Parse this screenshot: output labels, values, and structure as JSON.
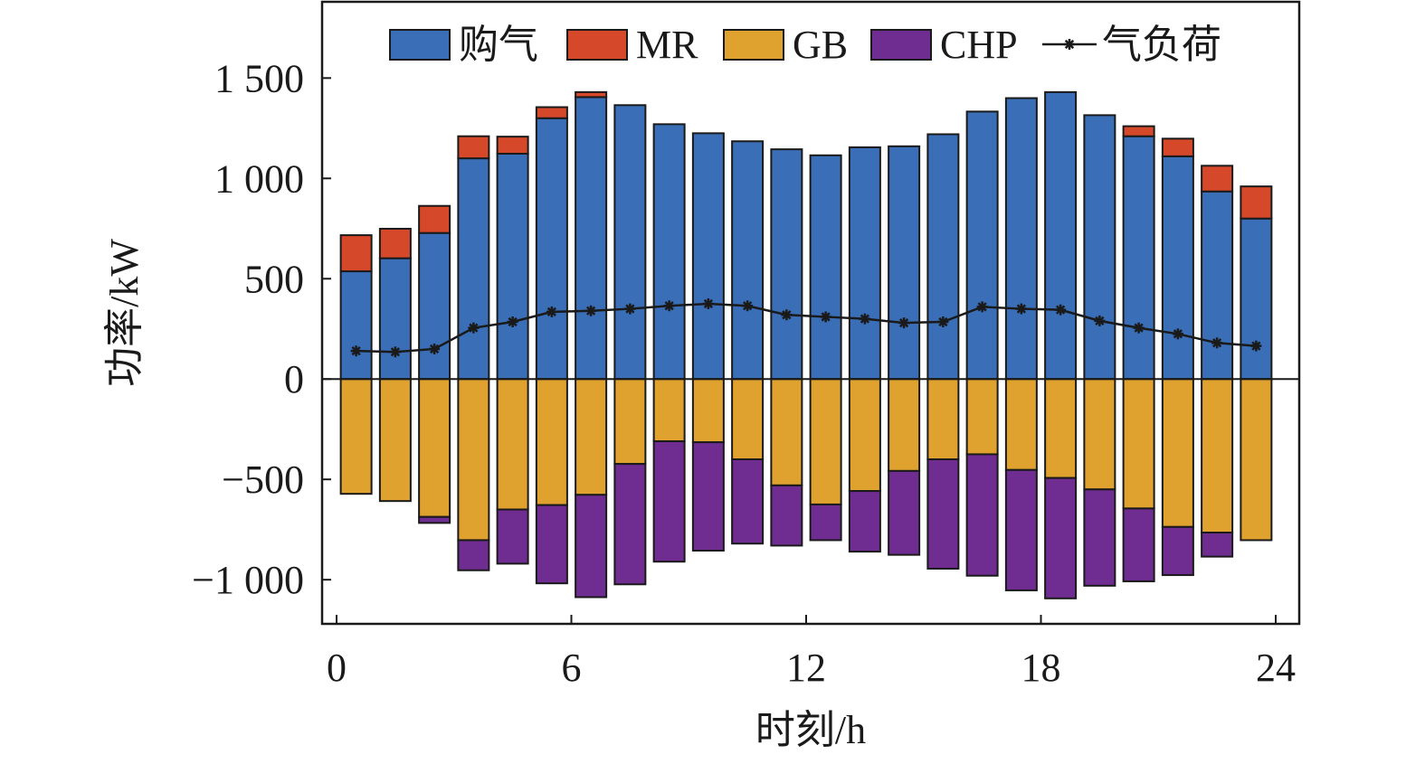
{
  "chart_data": {
    "type": "bar",
    "stacked": true,
    "xlabel": "时刻/h",
    "ylabel": "功率/kW",
    "xlim": [
      0,
      24
    ],
    "ylim": [
      -1220,
      1880
    ],
    "xticks": [
      {
        "value": 0,
        "label": "0"
      },
      {
        "value": 6,
        "label": "6"
      },
      {
        "value": 12,
        "label": "12"
      },
      {
        "value": 18,
        "label": "18"
      },
      {
        "value": 24,
        "label": "24"
      }
    ],
    "yticks": [
      {
        "value": 1500,
        "label": "1 500"
      },
      {
        "value": 1000,
        "label": "1 000"
      },
      {
        "value": 500,
        "label": "500"
      },
      {
        "value": 0,
        "label": "0"
      },
      {
        "value": -500,
        "label": "−500"
      },
      {
        "value": -1000,
        "label": "−1 000"
      }
    ],
    "grid": false,
    "legend_position": "top",
    "x": [
      0.5,
      1.5,
      2.5,
      3.5,
      4.5,
      5.5,
      6.5,
      7.5,
      8.5,
      9.5,
      10.5,
      11.5,
      12.5,
      13.5,
      14.5,
      15.5,
      16.5,
      17.5,
      18.5,
      19.5,
      20.5,
      21.5,
      22.5,
      23.5
    ],
    "series": [
      {
        "name": "购气",
        "kind": "bar",
        "color": "#3a6fb8",
        "values": [
          537,
          602,
          728,
          1100,
          1123,
          1300,
          1405,
          1365,
          1270,
          1225,
          1185,
          1145,
          1115,
          1155,
          1160,
          1220,
          1333,
          1400,
          1430,
          1315,
          1210,
          1110,
          935,
          800
        ]
      },
      {
        "name": "MR",
        "kind": "bar",
        "color": "#d6482a",
        "values": [
          180,
          147,
          135,
          110,
          85,
          55,
          25,
          0,
          0,
          0,
          0,
          0,
          0,
          0,
          0,
          0,
          0,
          0,
          0,
          0,
          50,
          88,
          128,
          160
        ]
      },
      {
        "name": "GB",
        "kind": "bar",
        "color": "#e0a22e",
        "values": [
          -572,
          -608,
          -687,
          -803,
          -650,
          -628,
          -577,
          -423,
          -310,
          -315,
          -400,
          -530,
          -625,
          -558,
          -458,
          -400,
          -375,
          -453,
          -493,
          -550,
          -645,
          -737,
          -765,
          -803
        ]
      },
      {
        "name": "CHP",
        "kind": "bar",
        "color": "#6f2c91",
        "values": [
          0,
          0,
          -30,
          -150,
          -270,
          -390,
          -510,
          -600,
          -600,
          -540,
          -420,
          -300,
          -178,
          -302,
          -418,
          -545,
          -605,
          -600,
          -600,
          -480,
          -363,
          -240,
          -120,
          0
        ]
      },
      {
        "name": "气负荷",
        "kind": "line",
        "color": "#1a1a1a",
        "marker": "star",
        "values": [
          140,
          135,
          150,
          255,
          285,
          335,
          340,
          350,
          365,
          375,
          365,
          320,
          310,
          300,
          280,
          285,
          360,
          350,
          345,
          290,
          255,
          225,
          180,
          165
        ]
      }
    ]
  }
}
